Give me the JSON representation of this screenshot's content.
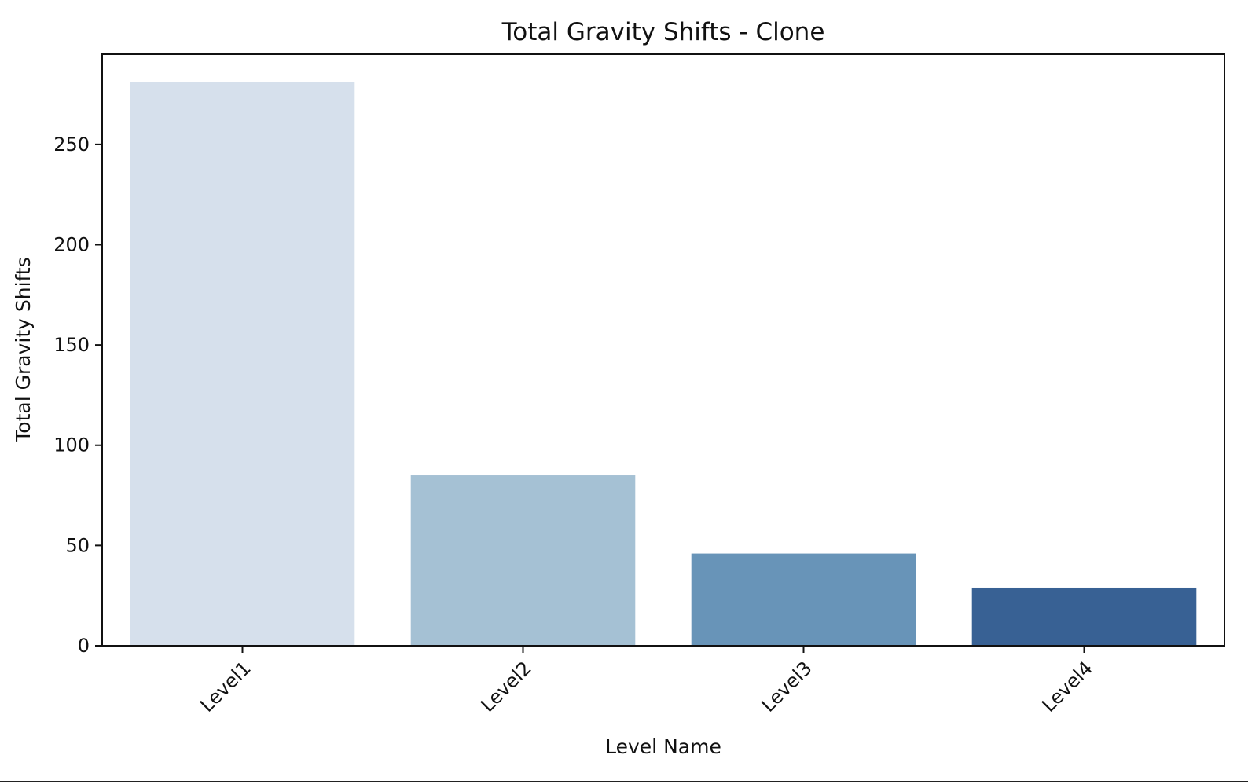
{
  "chart_data": {
    "type": "bar",
    "title": "Total Gravity Shifts - Clone",
    "xlabel": "Level Name",
    "ylabel": "Total Gravity Shifts",
    "categories": [
      "Level1",
      "Level2",
      "Level3",
      "Level4"
    ],
    "values": [
      281,
      85,
      46,
      29
    ],
    "ylim": [
      0,
      295
    ],
    "yticks": [
      0,
      50,
      100,
      150,
      200,
      250
    ],
    "colors": [
      "#d6e0ec",
      "#a5c1d4",
      "#6894b8",
      "#386194"
    ],
    "grid": false,
    "legend": "none"
  }
}
